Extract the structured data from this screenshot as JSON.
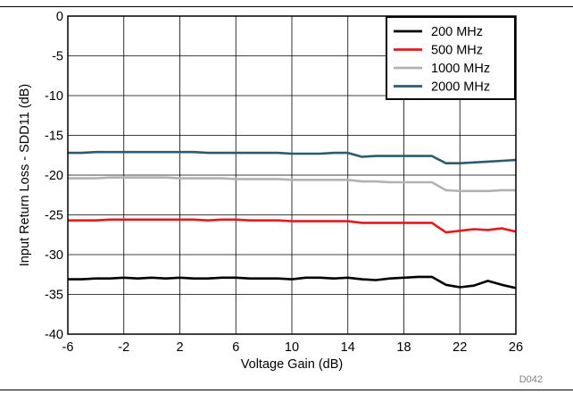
{
  "chart_data": {
    "type": "line",
    "xlabel": "Voltage Gain (dB)",
    "ylabel": "Input Return Loss - SDD11 (dB)",
    "xlim": [
      -6,
      26
    ],
    "ylim": [
      -40,
      0
    ],
    "xticks": [
      -6,
      -2,
      2,
      6,
      10,
      14,
      18,
      22,
      26
    ],
    "yticks": [
      0,
      -5,
      -10,
      -15,
      -20,
      -25,
      -30,
      -35,
      -40
    ],
    "grid": true,
    "legend_position": "top-right",
    "figure_code": "D042",
    "x": [
      -6,
      -5,
      -4,
      -3,
      -2,
      -1,
      0,
      1,
      2,
      3,
      4,
      5,
      6,
      7,
      8,
      9,
      10,
      11,
      12,
      13,
      14,
      15,
      16,
      17,
      18,
      19,
      20,
      21,
      22,
      23,
      24,
      25,
      26
    ],
    "series": [
      {
        "name": "200 MHz",
        "color": "#000000",
        "values": [
          -33.1,
          -33.1,
          -33.0,
          -33.0,
          -32.9,
          -33.0,
          -32.9,
          -33.0,
          -32.9,
          -33.0,
          -33.0,
          -32.9,
          -32.9,
          -33.0,
          -33.0,
          -33.0,
          -33.1,
          -32.9,
          -32.9,
          -33.0,
          -32.9,
          -33.1,
          -33.2,
          -33.0,
          -32.9,
          -32.8,
          -32.8,
          -33.8,
          -34.1,
          -33.9,
          -33.3,
          -33.8,
          -34.2
        ]
      },
      {
        "name": "500 MHz",
        "color": "#e31a1c",
        "values": [
          -25.7,
          -25.7,
          -25.7,
          -25.6,
          -25.6,
          -25.6,
          -25.6,
          -25.6,
          -25.6,
          -25.6,
          -25.7,
          -25.6,
          -25.6,
          -25.7,
          -25.7,
          -25.7,
          -25.8,
          -25.8,
          -25.8,
          -25.8,
          -25.8,
          -26.0,
          -26.0,
          -26.0,
          -26.0,
          -26.0,
          -26.0,
          -27.2,
          -27.0,
          -26.8,
          -26.9,
          -26.7,
          -27.1
        ]
      },
      {
        "name": "1000 MHz",
        "color": "#b2b2b2",
        "values": [
          -20.4,
          -20.4,
          -20.4,
          -20.3,
          -20.3,
          -20.3,
          -20.3,
          -20.3,
          -20.4,
          -20.4,
          -20.4,
          -20.4,
          -20.5,
          -20.5,
          -20.5,
          -20.5,
          -20.6,
          -20.6,
          -20.6,
          -20.6,
          -20.6,
          -20.8,
          -20.8,
          -20.9,
          -20.9,
          -20.9,
          -20.9,
          -21.9,
          -22.0,
          -22.0,
          -22.0,
          -21.9,
          -21.9
        ]
      },
      {
        "name": "2000 MHz",
        "color": "#2e5a6e",
        "values": [
          -17.2,
          -17.2,
          -17.1,
          -17.1,
          -17.1,
          -17.1,
          -17.1,
          -17.1,
          -17.1,
          -17.1,
          -17.2,
          -17.2,
          -17.2,
          -17.2,
          -17.2,
          -17.2,
          -17.3,
          -17.3,
          -17.3,
          -17.2,
          -17.2,
          -17.7,
          -17.6,
          -17.6,
          -17.6,
          -17.6,
          -17.6,
          -18.5,
          -18.5,
          -18.4,
          -18.3,
          -18.2,
          -18.1
        ]
      }
    ]
  }
}
